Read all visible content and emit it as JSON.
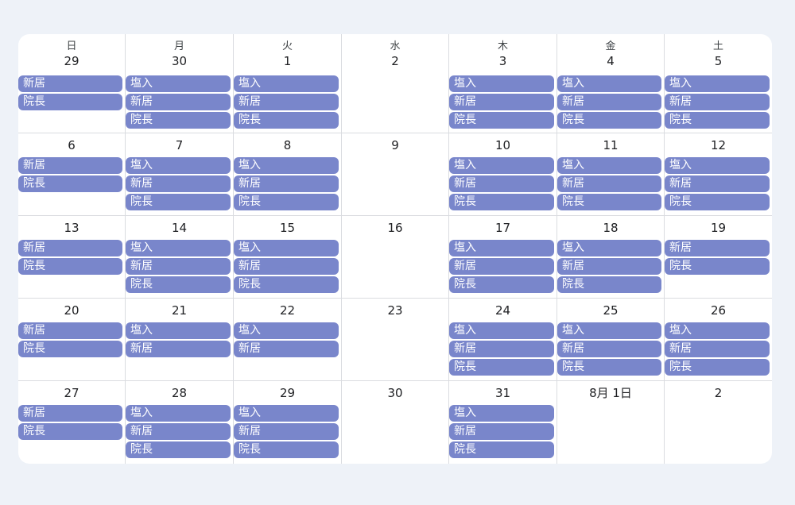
{
  "colors": {
    "event_bg": "#7986cb",
    "event_text": "#ffffff",
    "page_bg": "#eef2f8",
    "grid_line": "#dadce0"
  },
  "weekdays": [
    "日",
    "月",
    "火",
    "水",
    "木",
    "金",
    "土"
  ],
  "weeks": [
    [
      {
        "date": "29",
        "events": [
          "新居",
          "院長"
        ]
      },
      {
        "date": "30",
        "events": [
          "塩入",
          "新居",
          "院長"
        ]
      },
      {
        "date": "1",
        "events": [
          "塩入",
          "新居",
          "院長"
        ]
      },
      {
        "date": "2",
        "events": []
      },
      {
        "date": "3",
        "events": [
          "塩入",
          "新居",
          "院長"
        ]
      },
      {
        "date": "4",
        "events": [
          "塩入",
          "新居",
          "院長"
        ]
      },
      {
        "date": "5",
        "events": [
          "塩入",
          "新居",
          "院長"
        ]
      }
    ],
    [
      {
        "date": "6",
        "events": [
          "新居",
          "院長"
        ]
      },
      {
        "date": "7",
        "events": [
          "塩入",
          "新居",
          "院長"
        ]
      },
      {
        "date": "8",
        "events": [
          "塩入",
          "新居",
          "院長"
        ]
      },
      {
        "date": "9",
        "events": []
      },
      {
        "date": "10",
        "events": [
          "塩入",
          "新居",
          "院長"
        ]
      },
      {
        "date": "11",
        "events": [
          "塩入",
          "新居",
          "院長"
        ]
      },
      {
        "date": "12",
        "events": [
          "塩入",
          "新居",
          "院長"
        ]
      }
    ],
    [
      {
        "date": "13",
        "events": [
          "新居",
          "院長"
        ]
      },
      {
        "date": "14",
        "events": [
          "塩入",
          "新居",
          "院長"
        ]
      },
      {
        "date": "15",
        "events": [
          "塩入",
          "新居",
          "院長"
        ]
      },
      {
        "date": "16",
        "events": []
      },
      {
        "date": "17",
        "events": [
          "塩入",
          "新居",
          "院長"
        ]
      },
      {
        "date": "18",
        "events": [
          "塩入",
          "新居",
          "院長"
        ]
      },
      {
        "date": "19",
        "events": [
          "新居",
          "院長"
        ]
      }
    ],
    [
      {
        "date": "20",
        "events": [
          "新居",
          "院長"
        ]
      },
      {
        "date": "21",
        "events": [
          "塩入",
          "新居"
        ]
      },
      {
        "date": "22",
        "events": [
          "塩入",
          "新居"
        ]
      },
      {
        "date": "23",
        "events": []
      },
      {
        "date": "24",
        "events": [
          "塩入",
          "新居",
          "院長"
        ]
      },
      {
        "date": "25",
        "events": [
          "塩入",
          "新居",
          "院長"
        ]
      },
      {
        "date": "26",
        "events": [
          "塩入",
          "新居",
          "院長"
        ]
      }
    ],
    [
      {
        "date": "27",
        "events": [
          "新居",
          "院長"
        ]
      },
      {
        "date": "28",
        "events": [
          "塩入",
          "新居",
          "院長"
        ]
      },
      {
        "date": "29",
        "events": [
          "塩入",
          "新居",
          "院長"
        ]
      },
      {
        "date": "30",
        "events": []
      },
      {
        "date": "31",
        "events": [
          "塩入",
          "新居",
          "院長"
        ]
      },
      {
        "date": "8月 1日",
        "events": []
      },
      {
        "date": "2",
        "events": []
      }
    ]
  ]
}
